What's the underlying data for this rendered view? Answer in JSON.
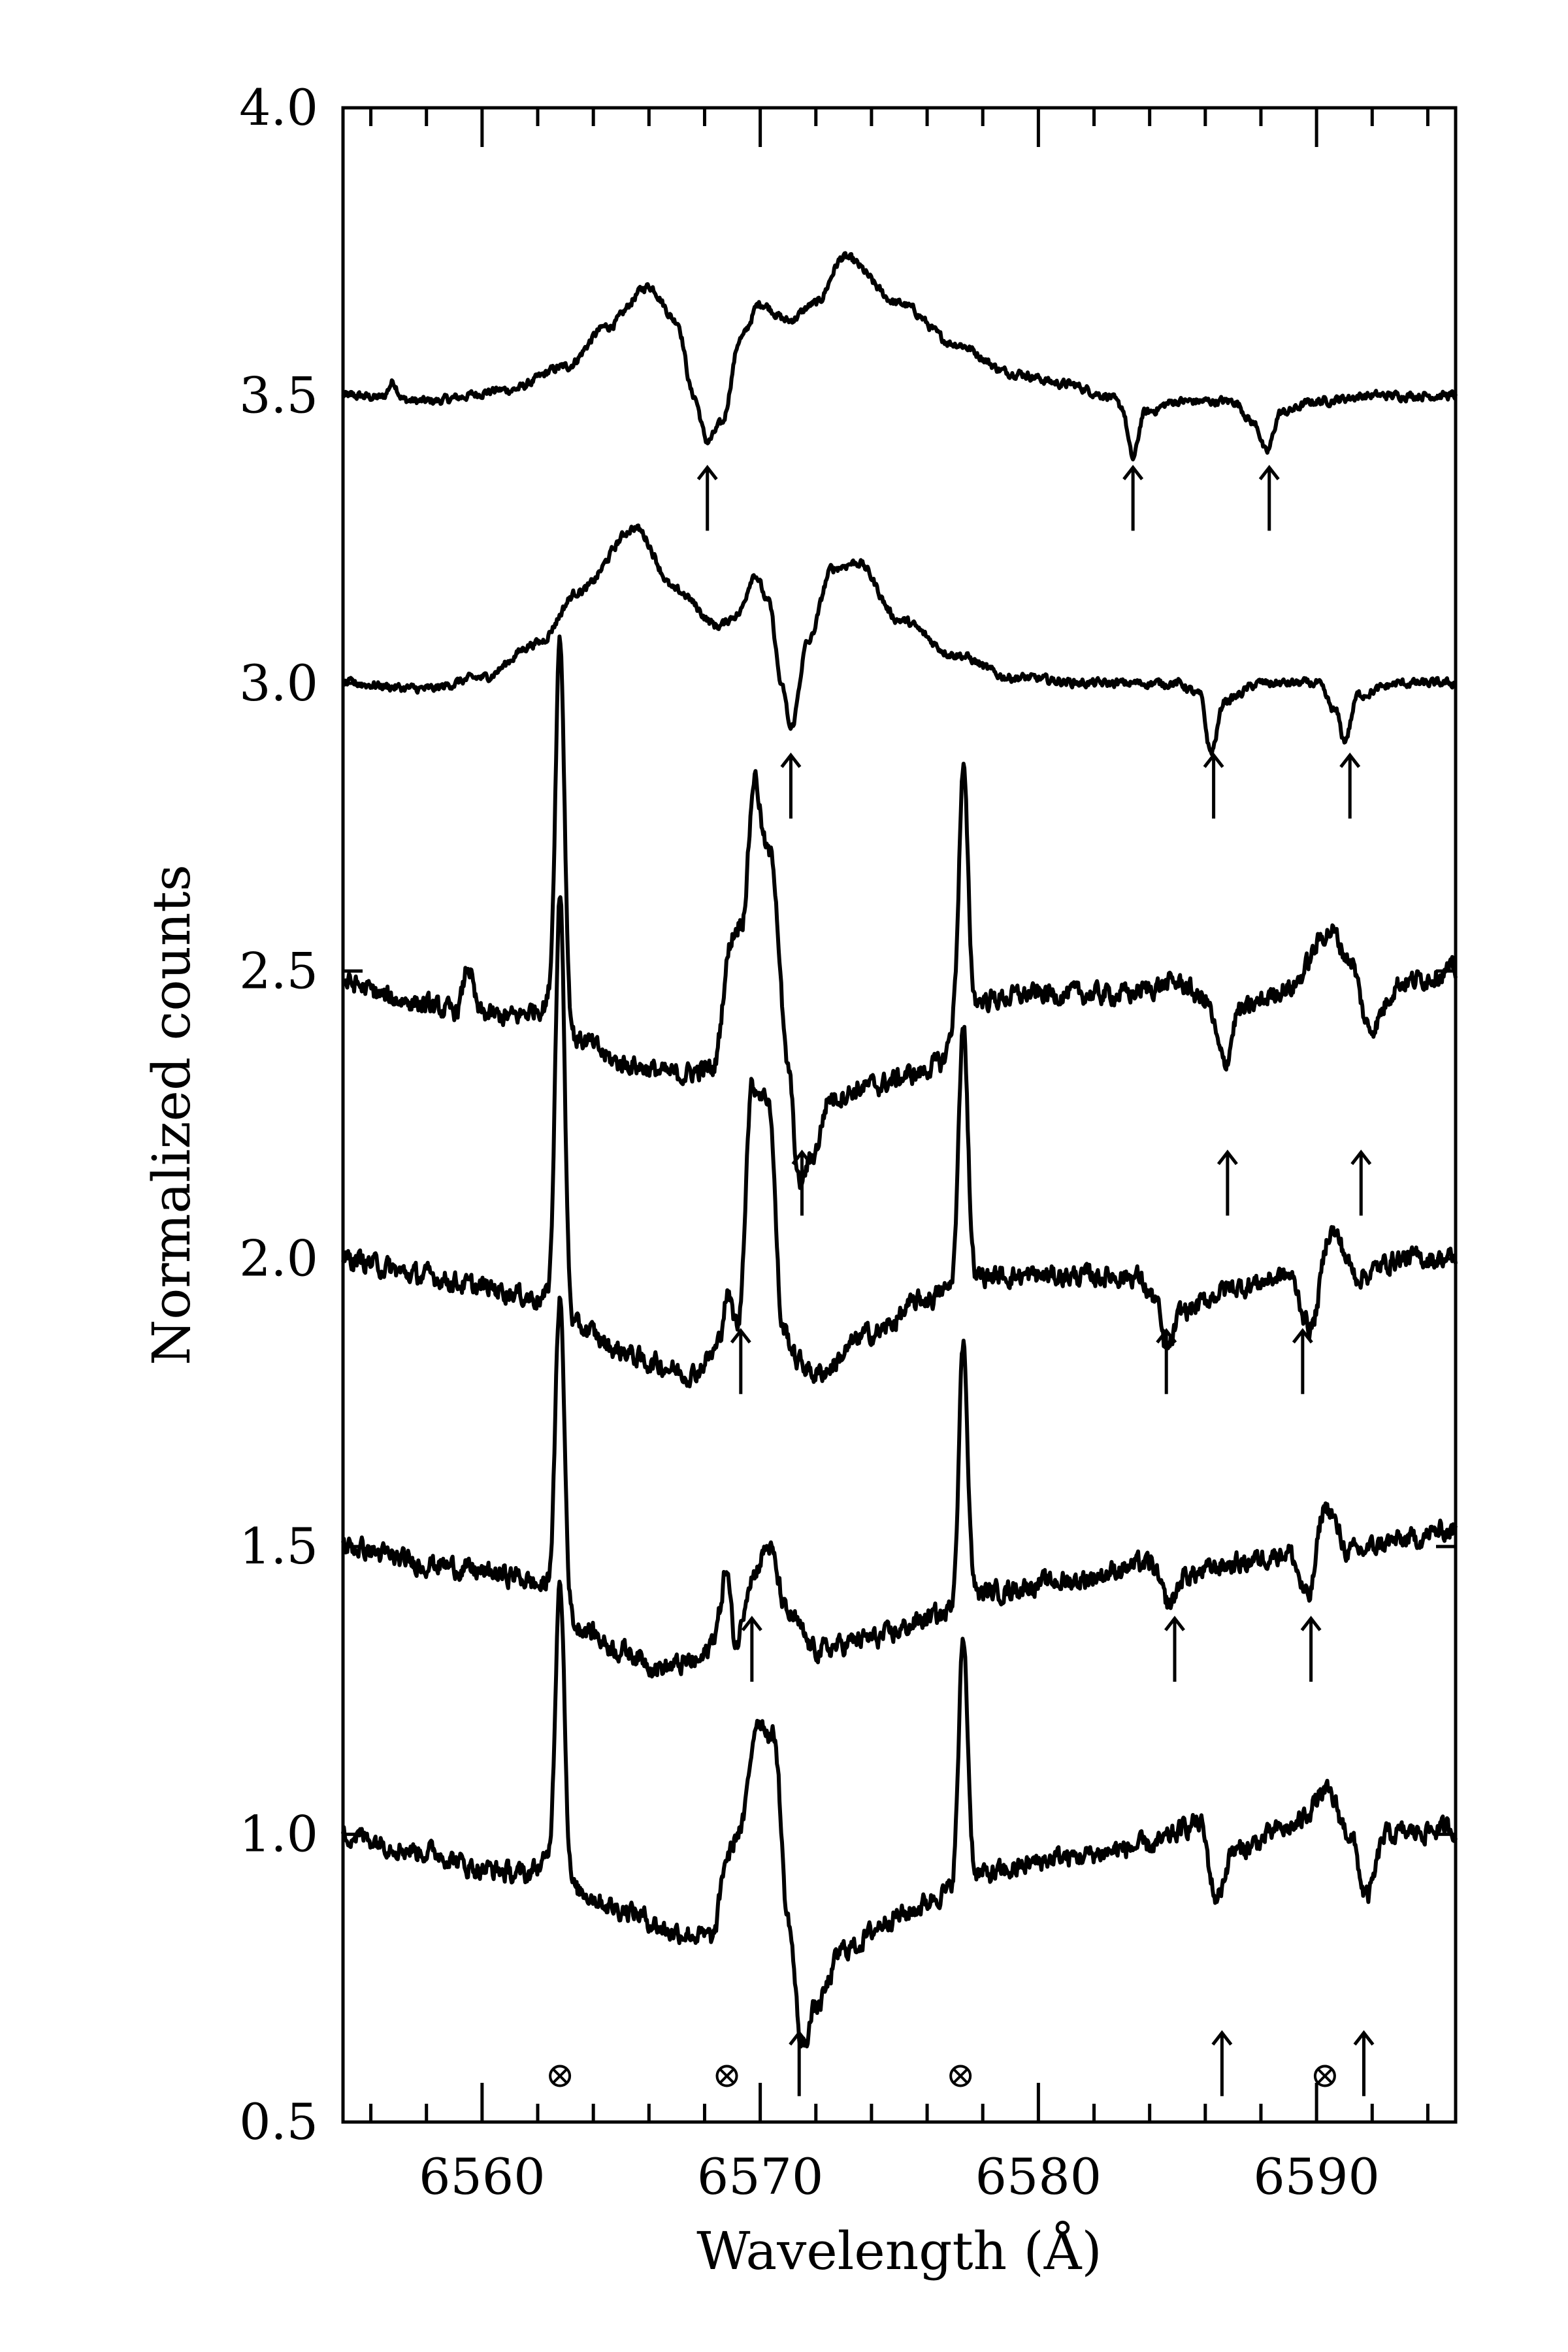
{
  "chart_data": {
    "type": "line",
    "title": "",
    "xlabel": "Wavelength (Å)",
    "ylabel": "Normalized counts",
    "xlim": [
      6555,
      6595
    ],
    "ylim": [
      0.5,
      4.0
    ],
    "xticks": [
      6560,
      6570,
      6580,
      6590
    ],
    "xtick_labels": [
      "6560",
      "6570",
      "6580",
      "6590"
    ],
    "yticks": [
      0.5,
      1.0,
      1.5,
      2.0,
      2.5,
      3.0,
      3.5,
      4.0
    ],
    "ytick_labels": [
      "0.5",
      "1.0",
      "1.5",
      "2.0",
      "2.5",
      "3.0",
      "3.5",
      "4.0"
    ],
    "grid": false,
    "series": [
      {
        "offset": 3.5,
        "continuum_level": 3.5,
        "keypoints": [
          [
            6555,
            3.5
          ],
          [
            6558,
            3.49
          ],
          [
            6561,
            3.51
          ],
          [
            6563,
            3.55
          ],
          [
            6564.5,
            3.62
          ],
          [
            6566,
            3.69
          ],
          [
            6567,
            3.63
          ],
          [
            6567.6,
            3.5
          ],
          [
            6568.1,
            3.42
          ],
          [
            6568.6,
            3.45
          ],
          [
            6569.3,
            3.6
          ],
          [
            6570,
            3.66
          ],
          [
            6571,
            3.63
          ],
          [
            6572,
            3.66
          ],
          [
            6573,
            3.74
          ],
          [
            6575,
            3.66
          ],
          [
            6577,
            3.59
          ],
          [
            6579,
            3.54
          ],
          [
            6581,
            3.52
          ],
          [
            6582.5,
            3.5
          ],
          [
            6583,
            3.48
          ],
          [
            6583.4,
            3.39
          ],
          [
            6583.8,
            3.47
          ],
          [
            6585,
            3.49
          ],
          [
            6587,
            3.49
          ],
          [
            6587.8,
            3.45
          ],
          [
            6588.2,
            3.4
          ],
          [
            6588.7,
            3.47
          ],
          [
            6590,
            3.49
          ],
          [
            6592,
            3.5
          ],
          [
            6595,
            3.5
          ]
        ],
        "spikes": [
          [
            6556.8,
            0.03
          ]
        ],
        "marked_lines": [
          6568.1,
          6583.4,
          6588.3
        ]
      },
      {
        "offset": 3.0,
        "continuum_level": 3.0,
        "keypoints": [
          [
            6555,
            3.0
          ],
          [
            6558,
            2.99
          ],
          [
            6560,
            3.01
          ],
          [
            6562,
            3.07
          ],
          [
            6563.5,
            3.16
          ],
          [
            6565.5,
            3.27
          ],
          [
            6567,
            3.16
          ],
          [
            6568.5,
            3.1
          ],
          [
            6569.2,
            3.12
          ],
          [
            6569.8,
            3.19
          ],
          [
            6570.3,
            3.14
          ],
          [
            6570.8,
            2.99
          ],
          [
            6571.1,
            2.92
          ],
          [
            6571.7,
            3.07
          ],
          [
            6572.6,
            3.2
          ],
          [
            6573.5,
            3.21
          ],
          [
            6575,
            3.11
          ],
          [
            6577,
            3.05
          ],
          [
            6579,
            3.01
          ],
          [
            6582,
            3.0
          ],
          [
            6585,
            3.0
          ],
          [
            6585.8,
            2.98
          ],
          [
            6586.2,
            2.88
          ],
          [
            6586.7,
            2.97
          ],
          [
            6588,
            3.0
          ],
          [
            6590,
            3.0
          ],
          [
            6590.7,
            2.95
          ],
          [
            6591,
            2.9
          ],
          [
            6591.5,
            2.98
          ],
          [
            6593,
            3.0
          ],
          [
            6595,
            3.0
          ]
        ],
        "spikes": [],
        "marked_lines": [
          6571.1,
          6586.3,
          6591.2
        ]
      },
      {
        "offset": 2.5,
        "continuum_level": 2.5,
        "keypoints": [
          [
            6555,
            2.48
          ],
          [
            6557,
            2.45
          ],
          [
            6559,
            2.43
          ],
          [
            6561,
            2.42
          ],
          [
            6562.4,
            2.44
          ],
          [
            6563.5,
            2.38
          ],
          [
            6565,
            2.34
          ],
          [
            6567,
            2.32
          ],
          [
            6568.3,
            2.33
          ],
          [
            6568.8,
            2.45
          ],
          [
            6569.3,
            2.58
          ],
          [
            6569.8,
            2.74
          ],
          [
            6570.4,
            2.7
          ],
          [
            6571,
            2.33
          ],
          [
            6571.4,
            2.13
          ],
          [
            6571.9,
            2.18
          ],
          [
            6572.5,
            2.28
          ],
          [
            6574,
            2.3
          ],
          [
            6575.5,
            2.32
          ],
          [
            6576.5,
            2.34
          ],
          [
            6577,
            2.4
          ],
          [
            6578,
            2.45
          ],
          [
            6580,
            2.46
          ],
          [
            6583,
            2.46
          ],
          [
            6585,
            2.48
          ],
          [
            6586,
            2.45
          ],
          [
            6586.7,
            2.34
          ],
          [
            6587.2,
            2.43
          ],
          [
            6589,
            2.47
          ],
          [
            6590.5,
            2.57
          ],
          [
            6591.2,
            2.52
          ],
          [
            6591.9,
            2.4
          ],
          [
            6593,
            2.48
          ],
          [
            6595,
            2.5
          ]
        ],
        "spikes": [
          [
            6559.5,
            0.08
          ],
          [
            6562.8,
            0.66
          ],
          [
            6569.8,
            0.1
          ],
          [
            6577.3,
            0.44
          ],
          [
            6568.9,
            0.08
          ]
        ],
        "marked_lines": [
          6571.5,
          6586.8,
          6591.6
        ]
      },
      {
        "offset": 2.0,
        "continuum_level": 2.0,
        "keypoints": [
          [
            6555,
            2.0
          ],
          [
            6558,
            1.97
          ],
          [
            6560,
            1.95
          ],
          [
            6562.3,
            1.93
          ],
          [
            6563.5,
            1.88
          ],
          [
            6565,
            1.84
          ],
          [
            6566,
            1.82
          ],
          [
            6567.5,
            1.8
          ],
          [
            6568.5,
            1.84
          ],
          [
            6569.2,
            1.88
          ],
          [
            6569.7,
            2.3
          ],
          [
            6570.3,
            2.28
          ],
          [
            6570.8,
            1.88
          ],
          [
            6571.4,
            1.82
          ],
          [
            6572,
            1.8
          ],
          [
            6574,
            1.87
          ],
          [
            6576,
            1.93
          ],
          [
            6577,
            1.95
          ],
          [
            6578,
            1.97
          ],
          [
            6581,
            1.97
          ],
          [
            6583.5,
            1.97
          ],
          [
            6584.2,
            1.93
          ],
          [
            6584.6,
            1.84
          ],
          [
            6585.2,
            1.91
          ],
          [
            6587,
            1.95
          ],
          [
            6589,
            1.97
          ],
          [
            6589.8,
            1.88
          ],
          [
            6590.5,
            2.05
          ],
          [
            6591.5,
            1.97
          ],
          [
            6593,
            2.0
          ],
          [
            6595,
            2.0
          ]
        ],
        "spikes": [
          [
            6562.8,
            0.73
          ],
          [
            6577.3,
            0.46
          ],
          [
            6568.8,
            0.08
          ]
        ],
        "marked_lines": [
          6569.3,
          6584.6,
          6589.5
        ]
      },
      {
        "offset": 1.5,
        "continuum_level": 1.5,
        "keypoints": [
          [
            6555,
            1.5
          ],
          [
            6558,
            1.47
          ],
          [
            6561,
            1.45
          ],
          [
            6562.3,
            1.43
          ],
          [
            6563.5,
            1.36
          ],
          [
            6565,
            1.32
          ],
          [
            6566.5,
            1.29
          ],
          [
            6567.8,
            1.3
          ],
          [
            6568.5,
            1.35
          ],
          [
            6569,
            1.3
          ],
          [
            6569.7,
            1.45
          ],
          [
            6570.3,
            1.5
          ],
          [
            6571,
            1.38
          ],
          [
            6572,
            1.32
          ],
          [
            6574,
            1.34
          ],
          [
            6576.5,
            1.38
          ],
          [
            6577.2,
            1.4
          ],
          [
            6578,
            1.42
          ],
          [
            6581,
            1.44
          ],
          [
            6584,
            1.47
          ],
          [
            6584.7,
            1.4
          ],
          [
            6585.3,
            1.45
          ],
          [
            6587,
            1.47
          ],
          [
            6589,
            1.49
          ],
          [
            6589.7,
            1.41
          ],
          [
            6590.3,
            1.57
          ],
          [
            6591.2,
            1.49
          ],
          [
            6593,
            1.51
          ],
          [
            6595,
            1.53
          ]
        ],
        "spikes": [
          [
            6562.8,
            0.53
          ],
          [
            6568.8,
            0.14
          ],
          [
            6577.3,
            0.45
          ]
        ],
        "marked_lines": [
          6569.7,
          6584.9,
          6589.8
        ]
      },
      {
        "offset": 1.0,
        "continuum_level": 1.0,
        "keypoints": [
          [
            6555,
            1.0
          ],
          [
            6558,
            0.97
          ],
          [
            6560,
            0.94
          ],
          [
            6561.5,
            0.93
          ],
          [
            6562.3,
            0.95
          ],
          [
            6563.5,
            0.9
          ],
          [
            6565,
            0.87
          ],
          [
            6567,
            0.83
          ],
          [
            6568.3,
            0.82
          ],
          [
            6568.8,
            0.96
          ],
          [
            6569.3,
            1.01
          ],
          [
            6569.9,
            1.2
          ],
          [
            6570.5,
            1.17
          ],
          [
            6571,
            0.85
          ],
          [
            6571.5,
            0.63
          ],
          [
            6572,
            0.7
          ],
          [
            6573,
            0.8
          ],
          [
            6575,
            0.86
          ],
          [
            6576.8,
            0.9
          ],
          [
            6577.3,
            0.92
          ],
          [
            6578,
            0.93
          ],
          [
            6581,
            0.96
          ],
          [
            6584,
            0.98
          ],
          [
            6585.8,
            1.02
          ],
          [
            6586.4,
            0.89
          ],
          [
            6587,
            0.97
          ],
          [
            6589,
            1.01
          ],
          [
            6590.4,
            1.07
          ],
          [
            6591.2,
            1.0
          ],
          [
            6591.8,
            0.89
          ],
          [
            6592.5,
            1.0
          ],
          [
            6595,
            1.01
          ]
        ],
        "spikes": [
          [
            6562.8,
            0.52
          ],
          [
            6577.3,
            0.42
          ]
        ],
        "marked_lines": [
          6571.4,
          6586.6,
          6591.7
        ]
      }
    ],
    "telluric_markers": [
      6562.8,
      6568.8,
      6577.2,
      6590.3
    ],
    "marker_level": 0.58
  }
}
